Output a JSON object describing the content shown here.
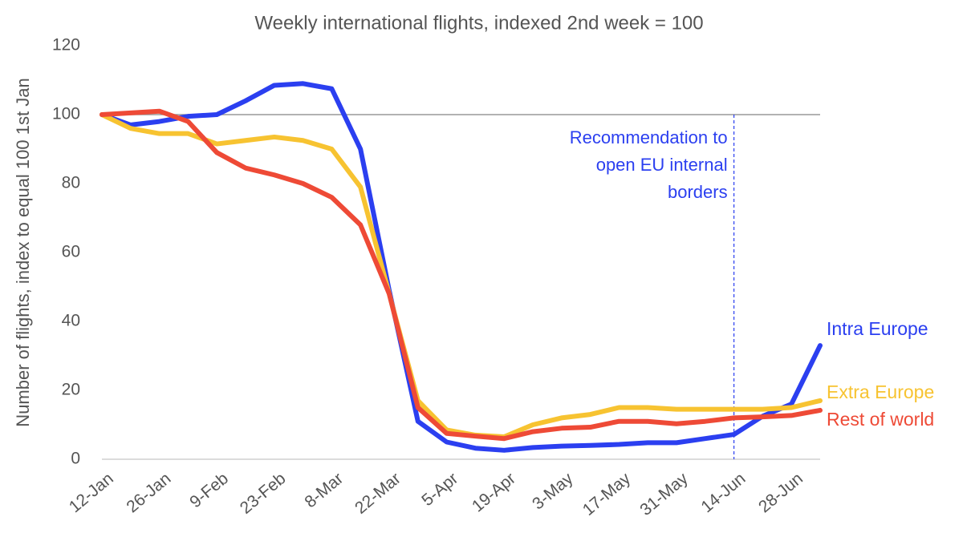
{
  "chart_data": {
    "type": "line",
    "title": "Weekly international flights, indexed 2nd week = 100",
    "y_label": "Number of flights, index to equal 100 1st Jan",
    "categories": [
      "12-Jan",
      null,
      "26-Jan",
      null,
      "9-Feb",
      null,
      "23-Feb",
      null,
      "8-Mar",
      null,
      "22-Mar",
      null,
      "5-Apr",
      null,
      "19-Apr",
      null,
      "3-May",
      null,
      "17-May",
      null,
      "31-May",
      null,
      "14-Jun",
      null,
      "28-Jun",
      null
    ],
    "series": [
      {
        "name": "Intra Europe",
        "color": "#2b3ff0",
        "values": [
          100,
          97,
          98,
          99.5,
          100,
          104,
          108.5,
          109,
          107.5,
          90,
          49,
          11,
          5,
          3.2,
          2.6,
          3.4,
          3.8,
          4,
          4.3,
          4.8,
          4.8,
          6,
          7.2,
          12.5,
          16,
          33
        ]
      },
      {
        "name": "Extra Europe",
        "color": "#f7c331",
        "values": [
          100,
          96,
          94.5,
          94.5,
          91.5,
          92.5,
          93.5,
          92.5,
          90,
          79,
          48,
          17,
          8.5,
          7,
          6.5,
          10,
          12,
          13,
          15,
          15,
          14.5,
          14.5,
          14.5,
          14.5,
          15,
          17
        ]
      },
      {
        "name": "Rest of world",
        "color": "#ee4a36",
        "values": [
          100,
          100.5,
          101,
          98,
          89,
          84.5,
          82.5,
          80,
          76,
          68,
          48,
          15,
          7.5,
          6.7,
          6,
          8,
          9,
          9.3,
          11,
          11,
          10.3,
          11,
          12,
          12.3,
          12.7,
          14.2
        ]
      }
    ],
    "ylim": [
      0,
      120
    ],
    "yticks": [
      0,
      20,
      40,
      60,
      80,
      100,
      120
    ],
    "reference_line": 100,
    "annotation": {
      "lines": [
        "Recommendation to",
        "open EU internal",
        "borders"
      ],
      "x": "14-Jun",
      "color": "#2b3ff0"
    }
  }
}
